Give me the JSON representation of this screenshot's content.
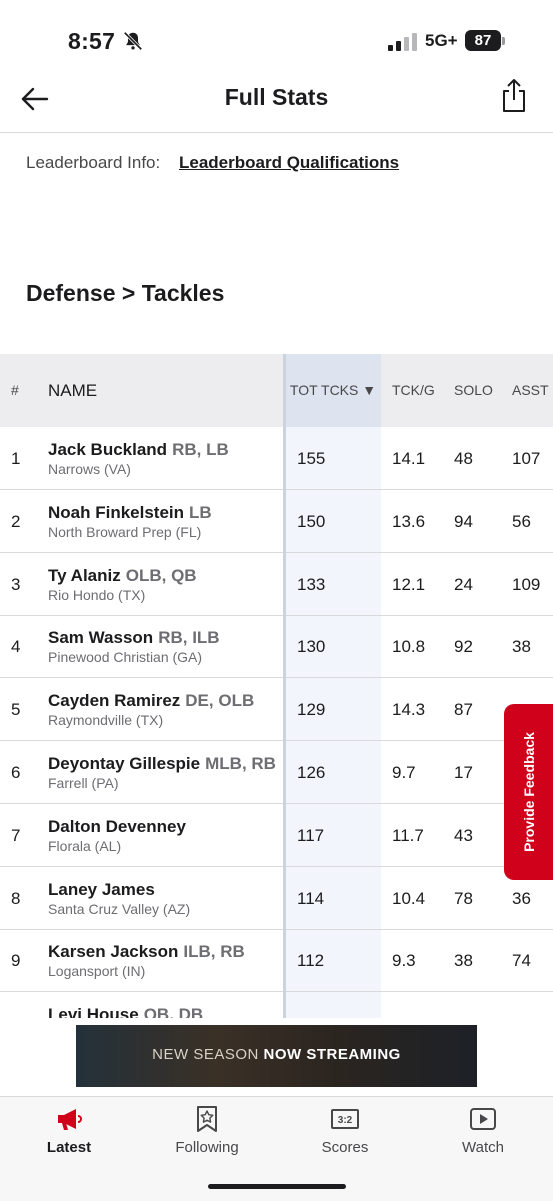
{
  "status_bar": {
    "time": "8:57",
    "network": "5G+",
    "battery": "87"
  },
  "header": {
    "title": "Full Stats"
  },
  "leaderboard": {
    "info_label": "Leaderboard Info:",
    "link_label": "Leaderboard Qualifications"
  },
  "section_title": "Defense > Tackles",
  "table": {
    "headers": {
      "rank": "#",
      "name": "NAME",
      "tot": "TOT TCKS ▼",
      "tckg": "TCK/G",
      "solo": "SOLO",
      "asst": "ASST"
    },
    "rows": [
      {
        "rank": "1",
        "name": "Jack Buckland",
        "pos": "RB, LB",
        "school": "Narrows (VA)",
        "tot": "155",
        "tckg": "14.1",
        "solo": "48",
        "asst": "107"
      },
      {
        "rank": "2",
        "name": "Noah Finkelstein",
        "pos": "LB",
        "school": "North Broward Prep (FL)",
        "tot": "150",
        "tckg": "13.6",
        "solo": "94",
        "asst": "56"
      },
      {
        "rank": "3",
        "name": "Ty Alaniz",
        "pos": "OLB, QB",
        "school": "Rio Hondo (TX)",
        "tot": "133",
        "tckg": "12.1",
        "solo": "24",
        "asst": "109"
      },
      {
        "rank": "4",
        "name": "Sam Wasson",
        "pos": "RB, ILB",
        "school": "Pinewood Christian (GA)",
        "tot": "130",
        "tckg": "10.8",
        "solo": "92",
        "asst": "38"
      },
      {
        "rank": "5",
        "name": "Cayden Ramirez",
        "pos": "DE, OLB",
        "school": "Raymondville (TX)",
        "tot": "129",
        "tckg": "14.3",
        "solo": "87",
        "asst": ""
      },
      {
        "rank": "6",
        "name": "Deyontay Gillespie",
        "pos": "MLB, RB",
        "school": "Farrell (PA)",
        "tot": "126",
        "tckg": "9.7",
        "solo": "17",
        "asst": ""
      },
      {
        "rank": "7",
        "name": "Dalton Devenney",
        "pos": "",
        "school": "Florala (AL)",
        "tot": "117",
        "tckg": "11.7",
        "solo": "43",
        "asst": ""
      },
      {
        "rank": "8",
        "name": "Laney James",
        "pos": "",
        "school": "Santa Cruz Valley (AZ)",
        "tot": "114",
        "tckg": "10.4",
        "solo": "78",
        "asst": "36"
      },
      {
        "rank": "9",
        "name": "Karsen Jackson",
        "pos": "ILB, RB",
        "school": "Logansport (IN)",
        "tot": "112",
        "tckg": "9.3",
        "solo": "38",
        "asst": "74"
      },
      {
        "rank": "",
        "name": "Levi House",
        "pos": "QB, DB",
        "school": "",
        "tot": "",
        "tckg": "",
        "solo": "",
        "asst": ""
      }
    ]
  },
  "feedback": {
    "label": "Provide Feedback"
  },
  "ad": {
    "text_pre": "NEW SEASON ",
    "text_bold": "NOW STREAMING"
  },
  "tabbar": {
    "tabs": [
      {
        "label": "Latest",
        "icon": "megaphone-icon"
      },
      {
        "label": "Following",
        "icon": "star-bookmark-icon"
      },
      {
        "label": "Scores",
        "icon": "scoreboard-icon"
      },
      {
        "label": "Watch",
        "icon": "play-icon"
      }
    ],
    "accent": "#d0021b"
  }
}
